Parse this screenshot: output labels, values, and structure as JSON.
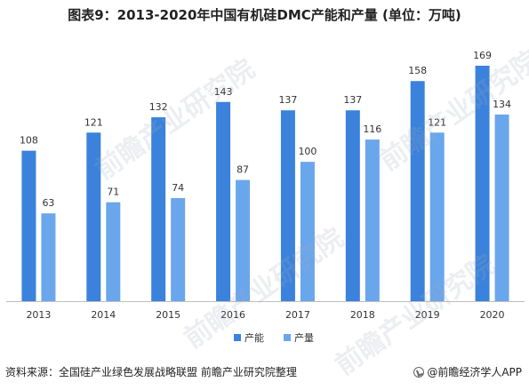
{
  "title": "图表9：2013-2020年中国有机硅DMC产能和产量 (单位：万吨)",
  "source": "资料来源：全国硅产业绿色发展战略联盟 前瞻产业研究院整理",
  "brand": "@前瞻经济学人APP",
  "watermark": "前瞻产业研究院",
  "colors": {
    "capacity": "#3b82dc",
    "output": "#6aa6ec"
  },
  "chart_data": {
    "type": "bar",
    "title": "图表9：2013-2020年中国有机硅DMC产能和产量 (单位：万吨)",
    "categories": [
      "2013",
      "2014",
      "2015",
      "2016",
      "2017",
      "2018",
      "2019",
      "2020"
    ],
    "series": [
      {
        "name": "产能",
        "values": [
          108,
          121,
          132,
          143,
          137,
          137,
          158,
          169
        ]
      },
      {
        "name": "产量",
        "values": [
          63,
          71,
          74,
          87,
          100,
          116,
          121,
          134
        ]
      }
    ],
    "ylim": [
      0,
      169
    ],
    "grid": false,
    "legend": "bottom"
  }
}
